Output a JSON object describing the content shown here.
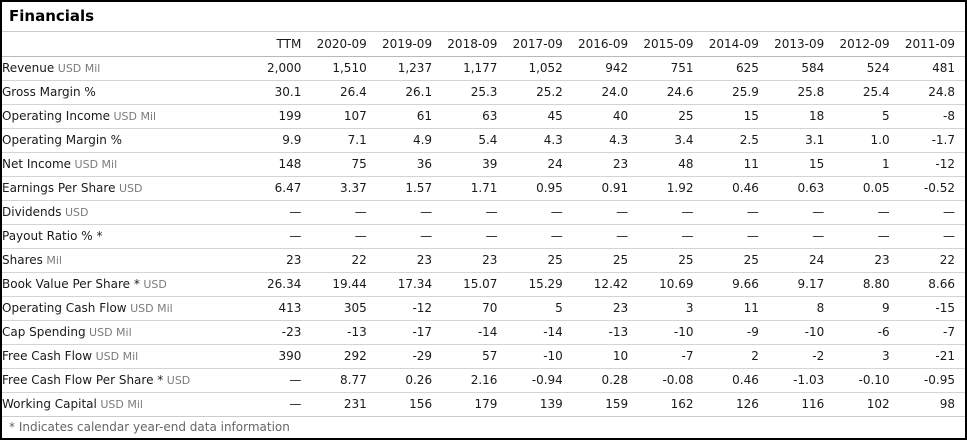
{
  "title": "Financials",
  "footnote": "* Indicates calendar year-end data information",
  "colors": {
    "outer_border": "#000000",
    "header_line": "#b9b9b9",
    "row_line": "#d4d4d4",
    "unit_text": "#7b7b7b",
    "footnote_text": "#666666"
  },
  "table": {
    "columns": [
      "TTM",
      "2020-09",
      "2019-09",
      "2018-09",
      "2017-09",
      "2016-09",
      "2015-09",
      "2014-09",
      "2013-09",
      "2012-09",
      "2011-09"
    ],
    "rows": [
      {
        "label": "Revenue",
        "unit": "USD Mil",
        "values": [
          "2,000",
          "1,510",
          "1,237",
          "1,177",
          "1,052",
          "942",
          "751",
          "625",
          "584",
          "524",
          "481"
        ]
      },
      {
        "label": "Gross Margin %",
        "unit": "",
        "values": [
          "30.1",
          "26.4",
          "26.1",
          "25.3",
          "25.2",
          "24.0",
          "24.6",
          "25.9",
          "25.8",
          "25.4",
          "24.8"
        ]
      },
      {
        "label": "Operating Income",
        "unit": "USD Mil",
        "values": [
          "199",
          "107",
          "61",
          "63",
          "45",
          "40",
          "25",
          "15",
          "18",
          "5",
          "-8"
        ]
      },
      {
        "label": "Operating Margin %",
        "unit": "",
        "values": [
          "9.9",
          "7.1",
          "4.9",
          "5.4",
          "4.3",
          "4.3",
          "3.4",
          "2.5",
          "3.1",
          "1.0",
          "-1.7"
        ]
      },
      {
        "label": "Net Income",
        "unit": "USD Mil",
        "values": [
          "148",
          "75",
          "36",
          "39",
          "24",
          "23",
          "48",
          "11",
          "15",
          "1",
          "-12"
        ]
      },
      {
        "label": "Earnings Per Share",
        "unit": "USD",
        "values": [
          "6.47",
          "3.37",
          "1.57",
          "1.71",
          "0.95",
          "0.91",
          "1.92",
          "0.46",
          "0.63",
          "0.05",
          "-0.52"
        ]
      },
      {
        "label": "Dividends",
        "unit": "USD",
        "values": [
          "—",
          "—",
          "—",
          "—",
          "—",
          "—",
          "—",
          "—",
          "—",
          "—",
          "—"
        ]
      },
      {
        "label": "Payout Ratio % *",
        "unit": "",
        "values": [
          "—",
          "—",
          "—",
          "—",
          "—",
          "—",
          "—",
          "—",
          "—",
          "—",
          "—"
        ]
      },
      {
        "label": "Shares",
        "unit": "Mil",
        "values": [
          "23",
          "22",
          "23",
          "23",
          "25",
          "25",
          "25",
          "25",
          "24",
          "23",
          "22"
        ]
      },
      {
        "label": "Book Value Per Share *",
        "unit": "USD",
        "values": [
          "26.34",
          "19.44",
          "17.34",
          "15.07",
          "15.29",
          "12.42",
          "10.69",
          "9.66",
          "9.17",
          "8.80",
          "8.66"
        ]
      },
      {
        "label": "Operating Cash Flow",
        "unit": "USD Mil",
        "values": [
          "413",
          "305",
          "-12",
          "70",
          "5",
          "23",
          "3",
          "11",
          "8",
          "9",
          "-15"
        ]
      },
      {
        "label": "Cap Spending",
        "unit": "USD Mil",
        "values": [
          "-23",
          "-13",
          "-17",
          "-14",
          "-14",
          "-13",
          "-10",
          "-9",
          "-10",
          "-6",
          "-7"
        ]
      },
      {
        "label": "Free Cash Flow",
        "unit": "USD Mil",
        "values": [
          "390",
          "292",
          "-29",
          "57",
          "-10",
          "10",
          "-7",
          "2",
          "-2",
          "3",
          "-21"
        ]
      },
      {
        "label": "Free Cash Flow Per Share *",
        "unit": "USD",
        "values": [
          "—",
          "8.77",
          "0.26",
          "2.16",
          "-0.94",
          "0.28",
          "-0.08",
          "0.46",
          "-1.03",
          "-0.10",
          "-0.95"
        ]
      },
      {
        "label": "Working Capital",
        "unit": "USD Mil",
        "values": [
          "—",
          "231",
          "156",
          "179",
          "139",
          "159",
          "162",
          "126",
          "116",
          "102",
          "98"
        ]
      }
    ]
  },
  "chart_data": {
    "type": "table",
    "title": "Financials",
    "categories": [
      "TTM",
      "2020-09",
      "2019-09",
      "2018-09",
      "2017-09",
      "2016-09",
      "2015-09",
      "2014-09",
      "2013-09",
      "2012-09",
      "2011-09"
    ],
    "series": [
      {
        "name": "Revenue USD Mil",
        "values": [
          2000,
          1510,
          1237,
          1177,
          1052,
          942,
          751,
          625,
          584,
          524,
          481
        ]
      },
      {
        "name": "Gross Margin %",
        "values": [
          30.1,
          26.4,
          26.1,
          25.3,
          25.2,
          24.0,
          24.6,
          25.9,
          25.8,
          25.4,
          24.8
        ]
      },
      {
        "name": "Operating Income USD Mil",
        "values": [
          199,
          107,
          61,
          63,
          45,
          40,
          25,
          15,
          18,
          5,
          -8
        ]
      },
      {
        "name": "Operating Margin %",
        "values": [
          9.9,
          7.1,
          4.9,
          5.4,
          4.3,
          4.3,
          3.4,
          2.5,
          3.1,
          1.0,
          -1.7
        ]
      },
      {
        "name": "Net Income USD Mil",
        "values": [
          148,
          75,
          36,
          39,
          24,
          23,
          48,
          11,
          15,
          1,
          -12
        ]
      },
      {
        "name": "Earnings Per Share USD",
        "values": [
          6.47,
          3.37,
          1.57,
          1.71,
          0.95,
          0.91,
          1.92,
          0.46,
          0.63,
          0.05,
          -0.52
        ]
      },
      {
        "name": "Dividends USD",
        "values": [
          null,
          null,
          null,
          null,
          null,
          null,
          null,
          null,
          null,
          null,
          null
        ]
      },
      {
        "name": "Payout Ratio % *",
        "values": [
          null,
          null,
          null,
          null,
          null,
          null,
          null,
          null,
          null,
          null,
          null
        ]
      },
      {
        "name": "Shares Mil",
        "values": [
          23,
          22,
          23,
          23,
          25,
          25,
          25,
          25,
          24,
          23,
          22
        ]
      },
      {
        "name": "Book Value Per Share * USD",
        "values": [
          26.34,
          19.44,
          17.34,
          15.07,
          15.29,
          12.42,
          10.69,
          9.66,
          9.17,
          8.8,
          8.66
        ]
      },
      {
        "name": "Operating Cash Flow USD Mil",
        "values": [
          413,
          305,
          -12,
          70,
          5,
          23,
          3,
          11,
          8,
          9,
          -15
        ]
      },
      {
        "name": "Cap Spending USD Mil",
        "values": [
          -23,
          -13,
          -17,
          -14,
          -14,
          -13,
          -10,
          -9,
          -10,
          -6,
          -7
        ]
      },
      {
        "name": "Free Cash Flow USD Mil",
        "values": [
          390,
          292,
          -29,
          57,
          -10,
          10,
          -7,
          2,
          -2,
          3,
          -21
        ]
      },
      {
        "name": "Free Cash Flow Per Share * USD",
        "values": [
          null,
          8.77,
          0.26,
          2.16,
          -0.94,
          0.28,
          -0.08,
          0.46,
          -1.03,
          -0.1,
          -0.95
        ]
      },
      {
        "name": "Working Capital USD Mil",
        "values": [
          null,
          231,
          156,
          179,
          139,
          159,
          162,
          126,
          116,
          102,
          98
        ]
      }
    ]
  }
}
